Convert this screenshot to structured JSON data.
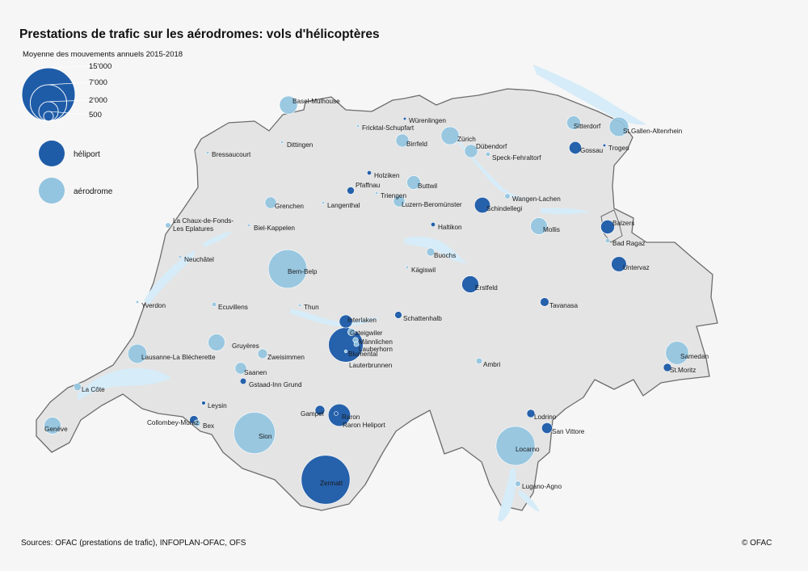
{
  "title": "Prestations de trafic sur les aérodromes: vols d'hélicoptères",
  "size_legend": {
    "title": "Moyenne des mouvements annuels 2015-2018",
    "values": [
      "15'000",
      "7'000",
      "2'000",
      "500"
    ]
  },
  "type_legend": {
    "heliport": "héliport",
    "aerodrome": "aérodrome"
  },
  "colors": {
    "heliport": "#1f5ca8",
    "aerodrome": "#93c4e0",
    "border": "#6d6d6d",
    "lake": "#d6ecf8",
    "land": "#e4e4e4",
    "outside": "#f6f6f6"
  },
  "sources": "Sources: OFAC (prestations de trafic), INFOPLAN-OFAC, OFS",
  "copyright": "© OFAC",
  "sites": [
    {
      "name": "Zermatt",
      "type": "heliport",
      "movements": 12500
    },
    {
      "name": "Sion",
      "type": "aerodrome",
      "movements": 9000
    },
    {
      "name": "Bern-Belp",
      "type": "aerodrome",
      "movements": 7800
    },
    {
      "name": "Locarno",
      "type": "aerodrome",
      "movements": 8000
    },
    {
      "name": "Lauterbrunnen",
      "type": "heliport",
      "movements": 6300
    },
    {
      "name": "Raron",
      "type": "heliport",
      "movements": 2600
    },
    {
      "name": "Raron Heliport",
      "type": "heliport",
      "movements": 80
    },
    {
      "name": "Samedan",
      "type": "aerodrome",
      "movements": 2800
    },
    {
      "name": "St.Gallen-Altenrhein",
      "type": "aerodrome",
      "movements": 2000
    },
    {
      "name": "Lausanne-La Blécherette",
      "type": "aerodrome",
      "movements": 1900
    },
    {
      "name": "Zürich",
      "type": "aerodrome",
      "movements": 1700
    },
    {
      "name": "Basel-Mulhouse",
      "type": "aerodrome",
      "movements": 1700
    },
    {
      "name": "Gruyères",
      "type": "aerodrome",
      "movements": 1500
    },
    {
      "name": "Genève",
      "type": "aerodrome",
      "movements": 1500
    },
    {
      "name": "Mollis",
      "type": "aerodrome",
      "movements": 1500
    },
    {
      "name": "Interlaken",
      "type": "heliport",
      "movements": 900
    },
    {
      "name": "Erstfeld",
      "type": "heliport",
      "movements": 1500
    },
    {
      "name": "Schindellegi",
      "type": "heliport",
      "movements": 1300
    },
    {
      "name": "Untervaz",
      "type": "heliport",
      "movements": 1200
    },
    {
      "name": "Balzers",
      "type": "heliport",
      "movements": 1000
    },
    {
      "name": "Sitterdorf",
      "type": "aerodrome",
      "movements": 1000
    },
    {
      "name": "Buttwil",
      "type": "aerodrome",
      "movements": 1000
    },
    {
      "name": "Birrfeld",
      "type": "aerodrome",
      "movements": 900
    },
    {
      "name": "Dübendorf",
      "type": "aerodrome",
      "movements": 900
    },
    {
      "name": "Luzern-Beromünster",
      "type": "aerodrome",
      "movements": 700
    },
    {
      "name": "Grenchen",
      "type": "aerodrome",
      "movements": 700
    },
    {
      "name": "Saanen",
      "type": "aerodrome",
      "movements": 700
    },
    {
      "name": "Gossau",
      "type": "heliport",
      "movements": 800
    },
    {
      "name": "San Vittore",
      "type": "heliport",
      "movements": 600
    },
    {
      "name": "Zweisimmen",
      "type": "aerodrome",
      "movements": 500
    },
    {
      "name": "Gampel",
      "type": "heliport",
      "movements": 500
    },
    {
      "name": "Collombey-Muraz",
      "type": "heliport",
      "movements": 400
    },
    {
      "name": "Tavanasa",
      "type": "heliport",
      "movements": 400
    },
    {
      "name": "Lodrino",
      "type": "heliport",
      "movements": 350
    },
    {
      "name": "St.Moritz",
      "type": "heliport",
      "movements": 350
    },
    {
      "name": "Pfaffnau",
      "type": "heliport",
      "movements": 280
    },
    {
      "name": "Schattenhalb",
      "type": "heliport",
      "movements": 270
    },
    {
      "name": "Buochs",
      "type": "aerodrome",
      "movements": 350
    },
    {
      "name": "La Côte",
      "type": "aerodrome",
      "movements": 300
    },
    {
      "name": "Bex",
      "type": "aerodrome",
      "movements": 250
    },
    {
      "name": "Gstaad-Inn Grund",
      "type": "heliport",
      "movements": 200
    },
    {
      "name": "Gsteigwiler",
      "type": "aerodrome",
      "movements": 300
    },
    {
      "name": "Männlichen",
      "type": "aerodrome",
      "movements": 150
    },
    {
      "name": "Lauberhorn",
      "type": "aerodrome",
      "movements": 130
    },
    {
      "name": "Blumental",
      "type": "aerodrome",
      "movements": 40
    },
    {
      "name": "Wangen-Lachen",
      "type": "aerodrome",
      "movements": 150
    },
    {
      "name": "La Chaux-de-Fonds-Les Eplatures",
      "type": "aerodrome",
      "movements": 150
    },
    {
      "name": "Ambri",
      "type": "aerodrome",
      "movements": 200
    },
    {
      "name": "Lugano-Agno",
      "type": "aerodrome",
      "movements": 160
    },
    {
      "name": "Speck-Fehraltorf",
      "type": "aerodrome",
      "movements": 110
    },
    {
      "name": "Ecuvillens",
      "type": "aerodrome",
      "movements": 110
    },
    {
      "name": "Bad Ragaz",
      "type": "aerodrome",
      "movements": 100
    },
    {
      "name": "Holziken",
      "type": "heliport",
      "movements": 100
    },
    {
      "name": "Haltikon",
      "type": "heliport",
      "movements": 100
    },
    {
      "name": "Leysin",
      "type": "heliport",
      "movements": 80
    },
    {
      "name": "Neuchâtel",
      "type": "aerodrome",
      "movements": 50
    },
    {
      "name": "Yverdon",
      "type": "aerodrome",
      "movements": 40
    },
    {
      "name": "Bressaucourt",
      "type": "aerodrome",
      "movements": 40
    },
    {
      "name": "Langenthal",
      "type": "aerodrome",
      "movements": 40
    },
    {
      "name": "Triengen",
      "type": "aerodrome",
      "movements": 40
    },
    {
      "name": "Fricktal-Schupfart",
      "type": "aerodrome",
      "movements": 35
    },
    {
      "name": "Dittingen",
      "type": "aerodrome",
      "movements": 20
    },
    {
      "name": "Biel-Kappelen",
      "type": "aerodrome",
      "movements": 15
    },
    {
      "name": "Thun",
      "type": "aerodrome",
      "movements": 15
    },
    {
      "name": "Kägiswil",
      "type": "aerodrome",
      "movements": 15
    },
    {
      "name": "Würenlingen",
      "type": "heliport",
      "movements": 15
    },
    {
      "name": "Trogen",
      "type": "heliport",
      "movements": 15
    }
  ]
}
